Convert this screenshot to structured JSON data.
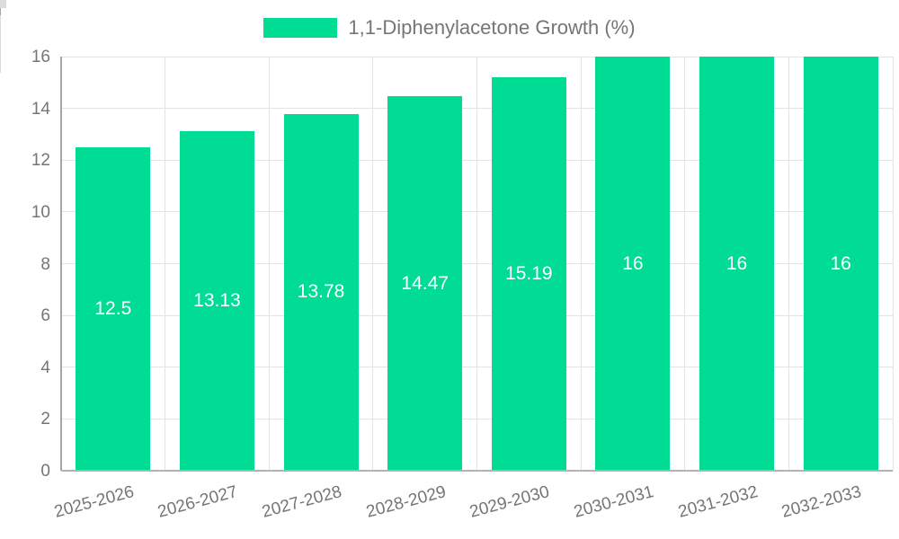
{
  "chart_data": {
    "type": "bar",
    "title": "1,1-Diphenylacetone Growth (%)",
    "legend": {
      "label": "1,1-Diphenylacetone Growth (%)",
      "position": "top"
    },
    "categories": [
      "2025-2026",
      "2026-2027",
      "2027-2028",
      "2028-2029",
      "2029-2030",
      "2030-2031",
      "2031-2032",
      "2032-2033"
    ],
    "values": [
      12.5,
      13.13,
      13.78,
      14.47,
      15.19,
      16,
      16,
      16
    ],
    "value_labels": [
      "12.5",
      "13.13",
      "13.78",
      "14.47",
      "15.19",
      "16",
      "16",
      "16"
    ],
    "xlabel": "",
    "ylabel": "",
    "ylim": [
      0,
      16
    ],
    "ytick_step": 2,
    "ytick_labels": [
      "0",
      "2",
      "4",
      "6",
      "8",
      "10",
      "12",
      "14",
      "16"
    ],
    "grid": true,
    "legend_position": "top-center",
    "colors": {
      "bar": "#00DC93",
      "axis_text": "#757575",
      "grid_line": "#e3e3e3",
      "axis_line": "#a6a6a6",
      "value_label": "#ffffff",
      "background": "#ffffff"
    }
  }
}
